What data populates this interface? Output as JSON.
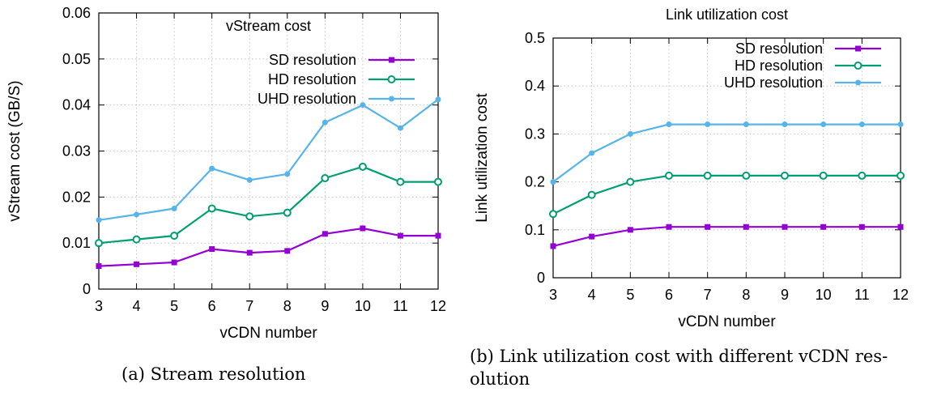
{
  "captions": {
    "a": "(a) Stream resolution",
    "b": "(b) Link utilization cost with different vCDN res-olution"
  },
  "chart_data": [
    {
      "type": "line",
      "title": "vStream cost",
      "xlabel": "vCDN number",
      "ylabel": "vStream cost (GB/S)",
      "x": [
        3,
        4,
        5,
        6,
        7,
        8,
        9,
        10,
        11,
        12
      ],
      "xlim": [
        3,
        12
      ],
      "ylim": [
        0,
        0.06
      ],
      "yticks": [
        "0",
        "0.01",
        "0.02",
        "0.03",
        "0.04",
        "0.05",
        "0.06"
      ],
      "ytick_values": [
        0,
        0.01,
        0.02,
        0.03,
        0.04,
        0.05,
        0.06
      ],
      "grid": true,
      "legend": "top-right",
      "series": [
        {
          "name": "SD resolution",
          "color": "#9400d3",
          "marker": "square",
          "values": [
            0.005,
            0.0054,
            0.0058,
            0.0087,
            0.0079,
            0.0083,
            0.012,
            0.0132,
            0.0116,
            0.0116
          ]
        },
        {
          "name": "HD resolution",
          "color": "#009e73",
          "marker": "circle",
          "values": [
            0.01,
            0.0108,
            0.0116,
            0.0175,
            0.0158,
            0.0166,
            0.0241,
            0.0266,
            0.0233,
            0.0233
          ]
        },
        {
          "name": "UHD resolution",
          "color": "#56b4e9",
          "marker": "dot",
          "values": [
            0.015,
            0.0162,
            0.0175,
            0.0262,
            0.0237,
            0.025,
            0.0362,
            0.04,
            0.035,
            0.0412
          ]
        }
      ]
    },
    {
      "type": "line",
      "title": "Link utilization cost",
      "xlabel": "vCDN number",
      "ylabel": "Link utilization cost",
      "x": [
        3,
        4,
        5,
        6,
        7,
        8,
        9,
        10,
        11,
        12
      ],
      "xlim": [
        3,
        12
      ],
      "ylim": [
        0,
        0.5
      ],
      "yticks": [
        "0",
        "0.1",
        "0.2",
        "0.3",
        "0.4",
        "0.5"
      ],
      "ytick_values": [
        0,
        0.1,
        0.2,
        0.3,
        0.4,
        0.5
      ],
      "grid": true,
      "legend": "top-right",
      "series": [
        {
          "name": "SD resolution",
          "color": "#9400d3",
          "marker": "square",
          "values": [
            0.066,
            0.086,
            0.1,
            0.106,
            0.106,
            0.106,
            0.106,
            0.106,
            0.106,
            0.106
          ]
        },
        {
          "name": "HD resolution",
          "color": "#009e73",
          "marker": "circle",
          "values": [
            0.133,
            0.173,
            0.2,
            0.213,
            0.213,
            0.213,
            0.213,
            0.213,
            0.213,
            0.213
          ]
        },
        {
          "name": "UHD resolution",
          "color": "#56b4e9",
          "marker": "dot",
          "values": [
            0.2,
            0.26,
            0.3,
            0.32,
            0.32,
            0.32,
            0.32,
            0.32,
            0.32,
            0.32
          ]
        }
      ]
    }
  ]
}
